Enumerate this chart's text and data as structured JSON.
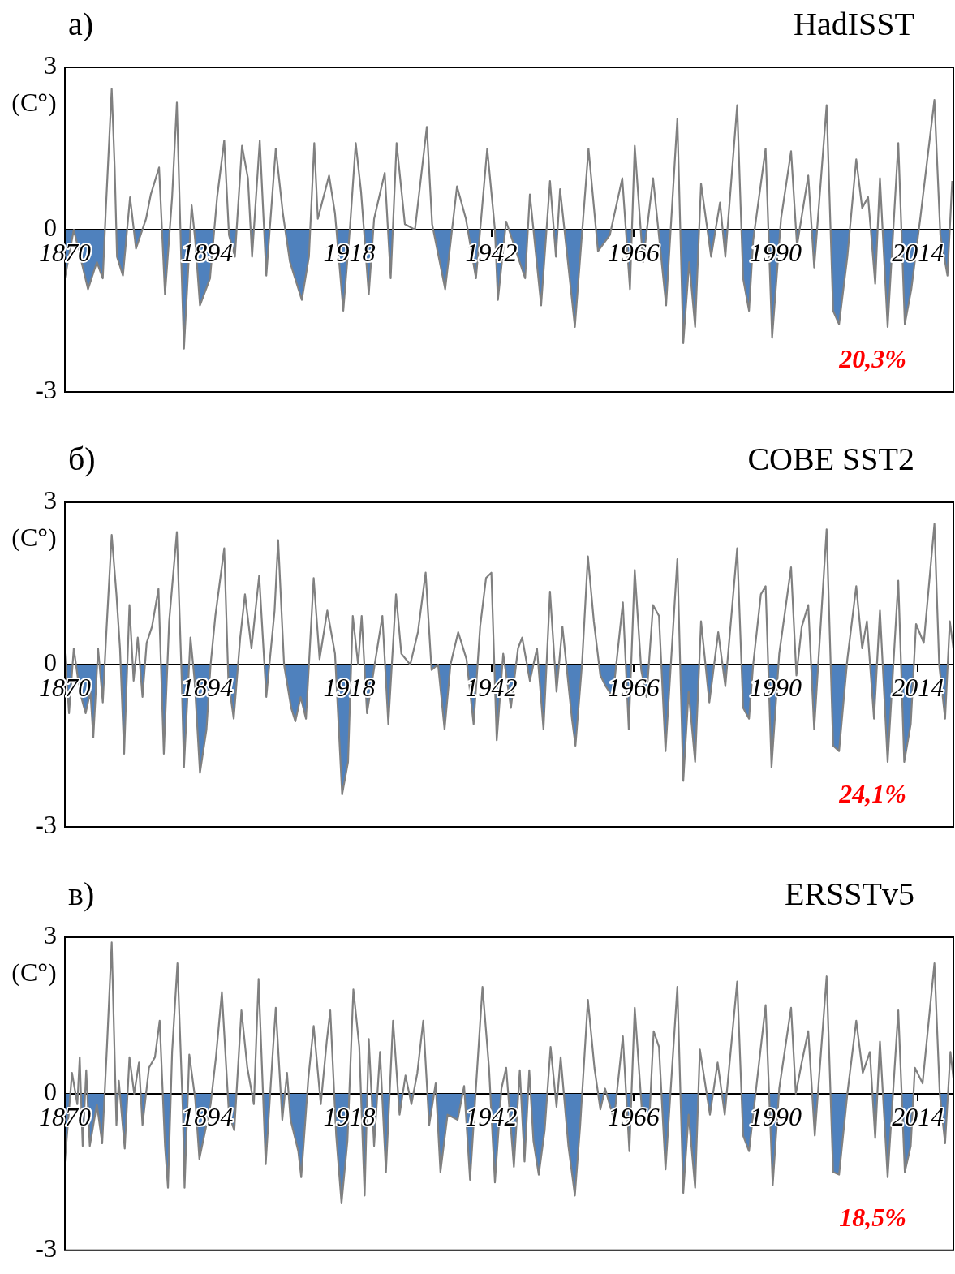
{
  "chart_data": [
    {
      "type": "area",
      "title": "а)",
      "subtitle": "HadISST",
      "ylabel": "(C°)",
      "annotations": [
        "20,3%"
      ],
      "color": "#808080",
      "marker": "none",
      "xlim": [
        1870,
        2020
      ],
      "xticks": [
        1870,
        1894,
        1918,
        1942,
        1966,
        1990,
        2014
      ],
      "ylim": [
        -3,
        3
      ],
      "yticks": [
        -3,
        0,
        3
      ],
      "legend": false,
      "x": [
        1870.0,
        1871.5,
        1873.9,
        1875.4,
        1876.4,
        1876.9,
        1877.9,
        1878.4,
        1878.8,
        1879.8,
        1881,
        1882,
        1883.7,
        1884.5,
        1885.9,
        1886.9,
        1888.1,
        1888.9,
        1889.6,
        1890.1,
        1891.4,
        1892,
        1892.8,
        1894.5,
        1895.7,
        1896.9,
        1897.7,
        1898.7,
        1899.9,
        1900.9,
        1901.6,
        1902.9,
        1904,
        1905.6,
        1906.8,
        1908,
        1910,
        1911.2,
        1912.1,
        1912.7,
        1914.6,
        1915.6,
        1917,
        1918.1,
        1919.1,
        1920,
        1921.3,
        1922.2,
        1924,
        1925,
        1926,
        1927.4,
        1929.1,
        1931.1,
        1932,
        1934.2,
        1936.2,
        1937.7,
        1939.4,
        1941.3,
        1942.6,
        1943.1,
        1944.5,
        1947.7,
        1948.5,
        1950.4,
        1951.9,
        1952.9,
        1953.6,
        1956.1,
        1958.4,
        1960,
        1962,
        1964.1,
        1965.4,
        1966.2,
        1967.6,
        1969.3,
        1971.5,
        1973.4,
        1974.4,
        1975.4,
        1976.4,
        1977.4,
        1979.1,
        1980.6,
        1981.5,
        1983.5,
        1984.5,
        1985.5,
        1986.2,
        1988.3,
        1989.4,
        1990.9,
        1992.6,
        1993.6,
        1995.5,
        1996.5,
        1998.6,
        1999.7,
        2000.7,
        2002.1,
        2003.6,
        2004.6,
        2005.6,
        2006.8,
        2007.6,
        2008.9,
        2010.7,
        2011.8,
        2012.9,
        2014.4,
        2016.8,
        2017.8,
        2019,
        2019.8
      ],
      "values": [
        -0.9,
        0,
        -1.1,
        -0.6,
        -0.9,
        0.35,
        2.6,
        1.15,
        -0.5,
        -0.85,
        0.6,
        -0.35,
        0.2,
        0.65,
        1.15,
        -1.2,
        0.6,
        2.35,
        -0.4,
        -2.2,
        0.45,
        -0.2,
        -1.4,
        -0.9,
        0.6,
        1.65,
        -0.1,
        -0.5,
        1.55,
        0.95,
        -0.5,
        1.65,
        -0.85,
        1.5,
        0.3,
        -0.6,
        -1.3,
        -0.5,
        1.6,
        0.2,
        1,
        0.3,
        -1.5,
        0,
        1.6,
        0.7,
        -1.2,
        0.2,
        1.05,
        -0.9,
        1.6,
        0.1,
        0,
        1.9,
        0.1,
        -1.1,
        0.8,
        0.2,
        -0.9,
        1.5,
        0,
        -1.3,
        0.15,
        -0.9,
        0.65,
        -1.4,
        0.9,
        -0.5,
        0.75,
        -1.8,
        1.5,
        -0.4,
        -0.1,
        0.95,
        -1.1,
        1.55,
        -0.6,
        0.95,
        -1.4,
        2.05,
        -2.1,
        -0.6,
        -1.8,
        0.85,
        -0.5,
        0.5,
        -0.5,
        2.3,
        -0.9,
        -1.5,
        -0.2,
        1.5,
        -2,
        0.2,
        1.45,
        -0.3,
        1,
        -0.7,
        2.3,
        -1.5,
        -1.75,
        -0.5,
        1.3,
        0.4,
        0.6,
        -1,
        0.95,
        -1.8,
        1.6,
        -1.75,
        -1.1,
        0.2,
        2.4,
        -0.1,
        -0.85,
        0.9
      ]
    },
    {
      "type": "area",
      "title": "б)",
      "subtitle": "COBE SST2",
      "ylabel": "(C°)",
      "annotations": [
        "24,1%"
      ],
      "color": "#808080",
      "marker": "none",
      "xlim": [
        1870,
        2020
      ],
      "xticks": [
        1870,
        1894,
        1918,
        1942,
        1966,
        1990,
        2014
      ],
      "ylim": [
        -3,
        3
      ],
      "yticks": [
        -3,
        0,
        3
      ],
      "legend": false,
      "x": [
        1870.0,
        1870.7,
        1871.5,
        1872.5,
        1873.5,
        1874.3,
        1874.8,
        1875.6,
        1876.4,
        1877.0,
        1877.9,
        1878.7,
        1879.3,
        1880.0,
        1880.9,
        1881.6,
        1882.3,
        1883.1,
        1883.8,
        1884.7,
        1885.8,
        1886.7,
        1887.6,
        1888.9,
        1889.7,
        1890.1,
        1891.2,
        1891.9,
        1892.8,
        1893.9,
        1894.6,
        1895.4,
        1896.9,
        1897.6,
        1898.5,
        1899.6,
        1900.4,
        1901.5,
        1902.8,
        1904.0,
        1905.4,
        1906.0,
        1907.0,
        1908.2,
        1908.9,
        1909.8,
        1910.7,
        1912.0,
        1913.0,
        1914.3,
        1915.6,
        1916.8,
        1917.8,
        1918.6,
        1919.5,
        1920.1,
        1921.0,
        1922.3,
        1923.6,
        1924.6,
        1925.9,
        1926.8,
        1928.3,
        1929.6,
        1930.9,
        1931.9,
        1933.0,
        1934.1,
        1935.1,
        1936.4,
        1937.8,
        1939.0,
        1940.1,
        1941.1,
        1942.0,
        1942.9,
        1944.0,
        1945.3,
        1946.5,
        1947.2,
        1948.5,
        1949.7,
        1950.8,
        1951.9,
        1953.0,
        1954.0,
        1955.6,
        1956.2,
        1957.3,
        1958.3,
        1959.3,
        1960.4,
        1961.3,
        1962.5,
        1964.2,
        1965.2,
        1966.2,
        1967.3,
        1968.2,
        1969.3,
        1970.3,
        1971.4,
        1973.4,
        1974.4,
        1975.3,
        1976.4,
        1977.4,
        1978.8,
        1980.3,
        1981.5,
        1983.5,
        1984.5,
        1985.5,
        1986.2,
        1987.5,
        1988.3,
        1989.3,
        1990.6,
        1992.6,
        1993.5,
        1994.4,
        1995.5,
        1996.5,
        1998.6,
        1999.7,
        2000.7,
        2002.1,
        2003.6,
        2004.6,
        2005.4,
        2006.6,
        2007.6,
        2008.9,
        2010.7,
        2011.7,
        2012.8,
        2013.7,
        2015.0,
        2016.8,
        2017.6,
        2018.6,
        2019.4,
        2020
      ],
      "values": [
        0.2,
        -0.9,
        0.3,
        -0.5,
        -0.9,
        -0.5,
        -1.35,
        0.3,
        -0.7,
        0.6,
        2.4,
        1.3,
        0.3,
        -1.65,
        1.1,
        -0.3,
        0.5,
        -0.6,
        0.4,
        0.7,
        1.4,
        -1.65,
        0.8,
        2.45,
        -0.2,
        -1.9,
        0.5,
        -0.3,
        -2.0,
        -1.2,
        0,
        0.9,
        2.15,
        -0.3,
        -1.0,
        0.5,
        1.3,
        0.3,
        1.65,
        -0.6,
        1.0,
        2.3,
        0,
        -0.8,
        -1.05,
        -0.6,
        -1.0,
        1.6,
        0.1,
        1.0,
        0.2,
        -2.4,
        -1.8,
        0.9,
        0,
        0.9,
        -0.9,
        0,
        0.9,
        -1.1,
        1.3,
        0.2,
        0,
        0.6,
        1.7,
        -0.1,
        0,
        -1.2,
        0,
        0.6,
        0.1,
        -1.1,
        0.7,
        1.6,
        1.7,
        -1.4,
        0.2,
        -0.8,
        0.3,
        0.5,
        -0.3,
        0.3,
        -1.2,
        1.35,
        -0.5,
        0.7,
        -1.0,
        -1.5,
        0,
        2.0,
        0.8,
        -0.2,
        -0.4,
        -0.6,
        1.15,
        -1.2,
        1.75,
        -0.1,
        -0.6,
        1.1,
        0.9,
        -1.6,
        1.95,
        -2.15,
        -0.5,
        -1.8,
        0.8,
        -0.7,
        0.6,
        -0.4,
        2.15,
        -0.8,
        -1.0,
        0,
        1.3,
        1.45,
        -1.9,
        0.2,
        1.8,
        -0.2,
        0.7,
        1.1,
        -1.2,
        2.5,
        -1.5,
        -1.6,
        0.1,
        1.45,
        0.3,
        0.8,
        -1.0,
        1.0,
        -1.8,
        1.55,
        -1.8,
        -1.1,
        0.75,
        0.4,
        2.6,
        0,
        -1.0,
        0.8,
        0.3
      ]
    },
    {
      "type": "area",
      "title": "в)",
      "subtitle": "ERSSTv5",
      "ylabel": "(C°)",
      "annotations": [
        "18,5%"
      ],
      "color": "#808080",
      "marker": "none",
      "xlim": [
        1870,
        2020
      ],
      "xticks": [
        1870,
        1894,
        1918,
        1942,
        1966,
        1990,
        2014
      ],
      "ylim": [
        -3,
        3
      ],
      "yticks": [
        -3,
        0,
        3
      ],
      "legend": false,
      "x": [
        1870.0,
        1871.2,
        1872.1,
        1872.5,
        1873.0,
        1873.6,
        1874.2,
        1875.4,
        1876.3,
        1877.1,
        1877.9,
        1878.7,
        1879.1,
        1880.1,
        1880.9,
        1881.7,
        1882.5,
        1883.1,
        1884.2,
        1885.2,
        1886.0,
        1886.9,
        1887.4,
        1888.1,
        1889.0,
        1889.9,
        1890.2,
        1891.0,
        1892.0,
        1892.7,
        1893.7,
        1894.6,
        1895.5,
        1896.5,
        1897.7,
        1898.6,
        1899.8,
        1900.8,
        1901.9,
        1902.7,
        1903.9,
        1905.1,
        1905.6,
        1906.7,
        1907.5,
        1908.1,
        1909.4,
        1909.9,
        1911.1,
        1912.0,
        1913.2,
        1914.2,
        1914.8,
        1915.8,
        1916.7,
        1917.7,
        1918.7,
        1919.7,
        1920.6,
        1921.3,
        1922.2,
        1923.2,
        1924.2,
        1925.4,
        1926.5,
        1927.5,
        1928.5,
        1929.5,
        1930.5,
        1931.5,
        1932.6,
        1933.4,
        1934.6,
        1936.3,
        1937.4,
        1938.4,
        1939.5,
        1940.5,
        1941.6,
        1942.6,
        1943.7,
        1944.5,
        1945.8,
        1946.8,
        1947.6,
        1948.4,
        1949.1,
        1950.0,
        1951.0,
        1952.0,
        1953.0,
        1953.7,
        1955.0,
        1956.1,
        1957.0,
        1958.3,
        1959.4,
        1960.4,
        1961.2,
        1962.7,
        1964.2,
        1965.3,
        1966.2,
        1967.4,
        1968.7,
        1969.4,
        1970.3,
        1971.4,
        1973.4,
        1974.4,
        1975.3,
        1976.4,
        1977.2,
        1978.9,
        1980.2,
        1981.4,
        1983.5,
        1984.5,
        1985.5,
        1986.4,
        1988.3,
        1989.5,
        1990.6,
        1992.6,
        1993.4,
        1994.4,
        1995.5,
        1996.6,
        1998.6,
        1999.7,
        2000.7,
        2002.1,
        2003.6,
        2004.7,
        2005.9,
        2006.8,
        2007.6,
        2008.9,
        2010.7,
        2011.8,
        2012.8,
        2013.5,
        2014.8,
        2016.8,
        2017.7,
        2018.6,
        2019.5,
        2020
      ],
      "values": [
        -1.3,
        0.4,
        -0.2,
        0.7,
        -1.0,
        0.45,
        -1.0,
        -0.2,
        -0.95,
        0.9,
        2.9,
        -0.6,
        0.25,
        -1.05,
        0.7,
        0,
        0.6,
        -0.6,
        0.5,
        0.7,
        1.4,
        -1.0,
        -1.8,
        0.8,
        2.5,
        -0.3,
        -1.8,
        0.75,
        -0.1,
        -1.25,
        -0.7,
        -0.2,
        0.7,
        1.95,
        -0.4,
        -0.7,
        1.6,
        0.5,
        -0.2,
        2.2,
        -1.35,
        0.8,
        1.65,
        -0.5,
        0.4,
        -0.5,
        -1.1,
        -1.6,
        0.3,
        1.3,
        -0.2,
        1.0,
        1.6,
        -0.8,
        -2.1,
        -0.9,
        2.0,
        0.9,
        -1.95,
        1.05,
        -1.0,
        0.8,
        -1.5,
        1.4,
        -0.4,
        0.35,
        -0.2,
        0.4,
        1.4,
        -0.6,
        0.2,
        -1.5,
        -0.4,
        -0.5,
        0.15,
        -1.65,
        0.3,
        2.05,
        0.5,
        -1.7,
        0.1,
        0.5,
        -1.4,
        0.45,
        -1.3,
        0.45,
        -0.9,
        -1.55,
        -0.7,
        0.9,
        -0.25,
        0.7,
        -1.0,
        -1.95,
        -0.6,
        1.8,
        0.5,
        -0.3,
        0.1,
        -0.5,
        1.1,
        -1.1,
        1.65,
        -0.3,
        -0.4,
        1.2,
        0.9,
        -1.45,
        2.05,
        -1.9,
        -0.4,
        -1.8,
        0.85,
        -0.4,
        0.6,
        -0.4,
        2.15,
        -0.8,
        -1.1,
        -0.2,
        1.7,
        -1.75,
        0.1,
        1.65,
        0,
        0.6,
        1.2,
        -0.8,
        2.25,
        -1.5,
        -1.55,
        0,
        1.4,
        0.4,
        0.8,
        -0.85,
        1.0,
        -1.6,
        1.6,
        -1.5,
        -1.0,
        0.5,
        0.2,
        2.5,
        0,
        -0.95,
        0.8,
        0.3
      ]
    }
  ]
}
